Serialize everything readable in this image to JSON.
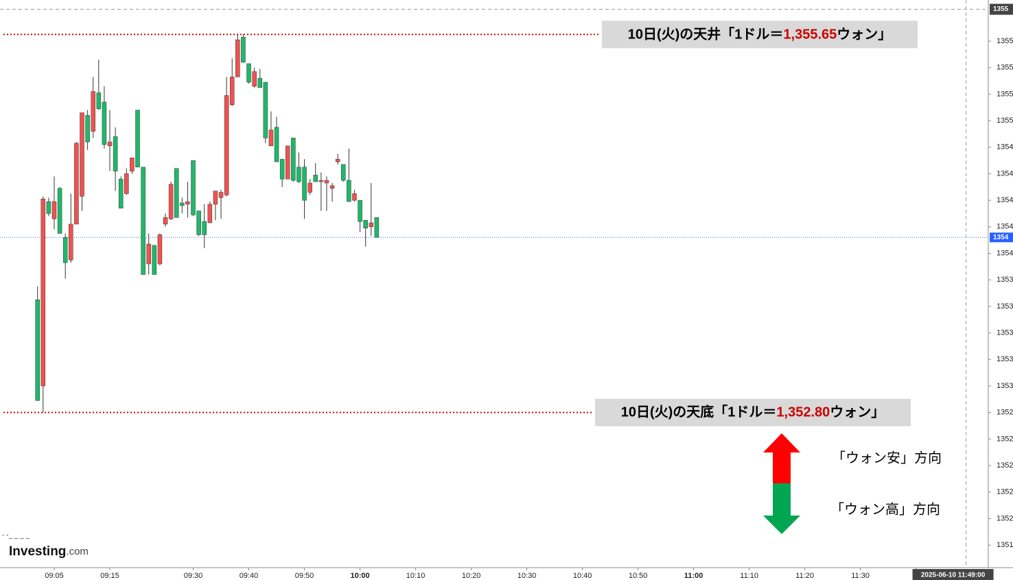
{
  "chart_data": {
    "type": "candlestick",
    "x": [
      542,
      543,
      544,
      545,
      546,
      547,
      548,
      549,
      550,
      551,
      552,
      553,
      554,
      555,
      556,
      557,
      558,
      559,
      560,
      561,
      562,
      563,
      564,
      565,
      566,
      567,
      568,
      569,
      570,
      571,
      572,
      573,
      574,
      575,
      576,
      577,
      578,
      579,
      580,
      581,
      582,
      583,
      584,
      585,
      586,
      587,
      588,
      589,
      590,
      591,
      592,
      593,
      594,
      595,
      596,
      597,
      598,
      599,
      600,
      601,
      602,
      603
    ],
    "open": [
      1352.89,
      1354.41,
      1354.3,
      1354.39,
      1354.15,
      1353.93,
      1354.22,
      1354.83,
      1355.06,
      1354.84,
      1355.22,
      1355.09,
      1354.82,
      1354.84,
      1354.62,
      1354.34,
      1354.6,
      1354.72,
      1354.65,
      1353.84,
      1354.07,
      1353.84,
      1354.14,
      1354.27,
      1354.52,
      1354.27,
      1354.36,
      1354.39,
      1354.29,
      1354.14,
      1354.14,
      1354.37,
      1354.47,
      1354.46,
      1355.19,
      1355.33,
      1355.61,
      1355.44,
      1355.29,
      1355.37,
      1355.25,
      1354.87,
      1354.93,
      1354.69,
      1354.56,
      1354.81,
      1354.55,
      1354.54,
      1354.4,
      1354.53,
      1354.54,
      1354.55,
      1354.55,
      1354.51,
      1354.71,
      1354.55,
      1354.39,
      1354.45,
      1354.24,
      1354.19,
      1354.23,
      1354.12
    ],
    "high": [
      1353.75,
      1354.43,
      1354.42,
      1354.58,
      1354.5,
      1354.15,
      1354.45,
      1354.84,
      1355.06,
      1355.08,
      1355.33,
      1355.46,
      1355.26,
      1355.08,
      1354.95,
      1354.58,
      1354.64,
      1354.72,
      1355.08,
      1354.65,
      1354.15,
      1354.06,
      1354.15,
      1354.3,
      1354.54,
      1354.64,
      1354.42,
      1354.54,
      1354.7,
      1354.32,
      1354.37,
      1354.39,
      1354.47,
      1354.48,
      1355.33,
      1355.47,
      1355.65,
      1355.65,
      1355.43,
      1355.4,
      1355.39,
      1355.29,
      1355.07,
      1355.03,
      1354.71,
      1354.81,
      1354.87,
      1354.76,
      1354.71,
      1354.56,
      1354.68,
      1354.61,
      1354.58,
      1354.53,
      1354.75,
      1354.67,
      1354.79,
      1354.48,
      1354.4,
      1354.25,
      1354.53,
      1354.27
    ],
    "low": [
      1352.89,
      1352.8,
      1354.28,
      1354.18,
      1354.15,
      1353.81,
      1353.93,
      1354.22,
      1354.32,
      1354.78,
      1354.87,
      1355.08,
      1354.79,
      1354.62,
      1354.47,
      1354.34,
      1354.44,
      1354.6,
      1354.65,
      1353.84,
      1353.84,
      1353.84,
      1353.91,
      1354.2,
      1354.25,
      1354.27,
      1354.3,
      1354.27,
      1354.28,
      1354.13,
      1354.04,
      1354.23,
      1354.25,
      1354.26,
      1354.43,
      1355.11,
      1355.33,
      1355.44,
      1355.28,
      1355.25,
      1355.25,
      1354.83,
      1354.81,
      1354.69,
      1354.5,
      1354.56,
      1354.54,
      1354.53,
      1354.26,
      1354.44,
      1354.54,
      1354.32,
      1354.32,
      1354.39,
      1354.67,
      1354.54,
      1354.39,
      1354.39,
      1354.16,
      1354.05,
      1354.13,
      1354.12
    ],
    "close": [
      1353.65,
      1353.0,
      1354.39,
      1354.26,
      1354.49,
      1354.12,
      1353.95,
      1354.22,
      1354.43,
      1355.04,
      1354.92,
      1355.21,
      1355.14,
      1354.81,
      1354.88,
      1354.56,
      1354.45,
      1354.62,
      1355.08,
      1354.65,
      1353.92,
      1354.06,
      1353.92,
      1354.22,
      1354.26,
      1354.64,
      1354.38,
      1354.37,
      1354.7,
      1354.32,
      1354.24,
      1354.23,
      1354.37,
      1354.42,
      1354.44,
      1355.12,
      1355.33,
      1355.63,
      1355.43,
      1355.26,
      1355.32,
      1355.29,
      1354.81,
      1354.95,
      1354.71,
      1354.56,
      1354.87,
      1354.65,
      1354.65,
      1354.46,
      1354.59,
      1354.54,
      1354.53,
      1354.49,
      1354.69,
      1354.67,
      1354.55,
      1354.4,
      1354.4,
      1354.25,
      1354.2,
      1354.27
    ],
    "up_color": "#1fb86a",
    "down_color": "#ef5350",
    "xlim": [
      535.25,
      713.0
    ],
    "ylim": [
      1351.63,
      1355.91
    ],
    "xticks": [
      {
        "value": 545,
        "label": "09:05"
      },
      {
        "value": 555,
        "label": "09:15"
      },
      {
        "value": 570,
        "label": "09:30"
      },
      {
        "value": 580,
        "label": "09:40"
      },
      {
        "value": 590,
        "label": "09:50"
      },
      {
        "value": 600,
        "label": "10:00"
      },
      {
        "value": 610,
        "label": "10:10"
      },
      {
        "value": 620,
        "label": "10:20"
      },
      {
        "value": 630,
        "label": "10:30"
      },
      {
        "value": 640,
        "label": "10:40"
      },
      {
        "value": 650,
        "label": "10:50"
      },
      {
        "value": 660,
        "label": "11:00"
      },
      {
        "value": 670,
        "label": "11:10"
      },
      {
        "value": 680,
        "label": "11:20"
      },
      {
        "value": 690,
        "label": "11:30"
      },
      {
        "value": 700,
        "label": "11"
      }
    ],
    "yticks": [
      {
        "value": 1355.6,
        "label": "1355."
      },
      {
        "value": 1355.4,
        "label": "1355."
      },
      {
        "value": 1355.2,
        "label": "1355."
      },
      {
        "value": 1355.0,
        "label": "1355."
      },
      {
        "value": 1354.8,
        "label": "1354."
      },
      {
        "value": 1354.6,
        "label": "1354."
      },
      {
        "value": 1354.4,
        "label": "1354."
      },
      {
        "value": 1354.2,
        "label": "1354."
      },
      {
        "value": 1354.0,
        "label": "1354"
      },
      {
        "value": 1353.8,
        "label": "1353."
      },
      {
        "value": 1353.6,
        "label": "1353."
      },
      {
        "value": 1353.4,
        "label": "1353."
      },
      {
        "value": 1353.2,
        "label": "1353."
      },
      {
        "value": 1353.0,
        "label": "1353."
      },
      {
        "value": 1352.8,
        "label": "1352."
      },
      {
        "value": 1352.6,
        "label": "1352."
      },
      {
        "value": 1352.4,
        "label": "1352."
      },
      {
        "value": 1352.2,
        "label": "1352."
      },
      {
        "value": 1352.0,
        "label": "1352."
      },
      {
        "value": 1351.8,
        "label": "1351."
      }
    ],
    "price_line": {
      "value": 1354.12,
      "label": "1354",
      "color": "#2962ff"
    },
    "crosshair": {
      "y": {
        "value": 1355.84,
        "label": "1355"
      },
      "x": {
        "value": 709,
        "label": "2025-06-10 11:49:00"
      }
    },
    "annotations": [
      {
        "value": 1355.65,
        "text_before": "10日(火)の天井「1ドル＝",
        "value_label": "1,355.65",
        "text_after": "ウォン」",
        "color": "#cc0000"
      },
      {
        "value": 1352.8,
        "text_before": "10日(火)の天底「1ドル＝",
        "value_label": "1,352.80",
        "text_after": "ウォン」",
        "color": "#cc0000"
      }
    ],
    "direction_labels": {
      "up": "「ウォン安」方向",
      "down": "「ウォン高」方向"
    },
    "logo": {
      "brand": "Investing",
      "suffix": ".com"
    }
  }
}
